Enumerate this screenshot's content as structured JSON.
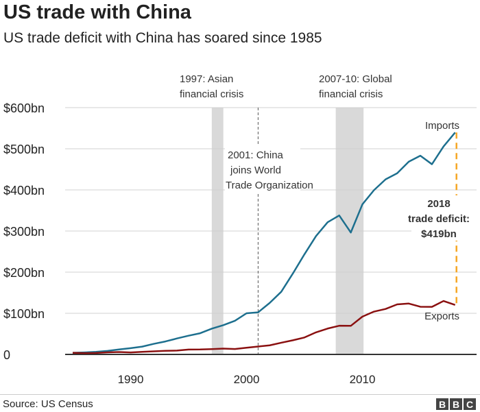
{
  "header": {
    "title": "US trade with China",
    "subtitle": "US trade deficit with China has soared since 1985"
  },
  "footer": {
    "source": "Source: US Census",
    "logo": "BBC"
  },
  "chart_data": {
    "type": "line",
    "title": "US trade with China",
    "subtitle": "US trade deficit with China has soared since 1985",
    "x": [
      1985,
      1986,
      1987,
      1988,
      1989,
      1990,
      1991,
      1992,
      1993,
      1994,
      1995,
      1996,
      1997,
      1998,
      1999,
      2000,
      2001,
      2002,
      2003,
      2004,
      2005,
      2006,
      2007,
      2008,
      2009,
      2010,
      2011,
      2012,
      2013,
      2014,
      2015,
      2016,
      2017,
      2018
    ],
    "series": [
      {
        "name": "Imports",
        "color": "#1d6f8e",
        "values": [
          3.9,
          4.8,
          6.3,
          8.5,
          12.0,
          15.2,
          19.0,
          25.7,
          31.5,
          38.8,
          45.5,
          51.5,
          62.6,
          71.2,
          81.8,
          100.0,
          102.3,
          125.2,
          152.4,
          196.7,
          243.5,
          287.8,
          321.4,
          337.8,
          296.4,
          364.9,
          399.4,
          425.6,
          440.4,
          468.5,
          483.2,
          462.4,
          505.5,
          539.5
        ]
      },
      {
        "name": "Exports",
        "color": "#8a1010",
        "values": [
          3.9,
          3.1,
          3.5,
          5.0,
          5.8,
          4.8,
          6.3,
          7.4,
          8.8,
          9.3,
          11.8,
          12.0,
          12.9,
          14.2,
          13.1,
          16.2,
          19.2,
          22.1,
          28.4,
          34.4,
          41.2,
          53.7,
          62.9,
          69.7,
          69.5,
          91.9,
          104.1,
          110.5,
          121.7,
          123.7,
          115.9,
          115.6,
          129.9,
          120.3
        ]
      }
    ],
    "xlim": [
      1984.5,
      2019.5
    ],
    "ylim": [
      0,
      600
    ],
    "x_ticks": [
      {
        "value": 1990,
        "label": "1990"
      },
      {
        "value": 2000,
        "label": "2000"
      },
      {
        "value": 2010,
        "label": "2010"
      }
    ],
    "y_ticks": [
      {
        "value": 0,
        "label": "0"
      },
      {
        "value": 100,
        "label": "$100bn"
      },
      {
        "value": 200,
        "label": "$200bn"
      },
      {
        "value": 300,
        "label": "$300bn"
      },
      {
        "value": 400,
        "label": "$400bn"
      },
      {
        "value": 500,
        "label": "$500bn"
      },
      {
        "value": 600,
        "label": "$600bn"
      }
    ],
    "grid": true,
    "shaded_periods": [
      {
        "start": 1997,
        "end": 1998,
        "label": [
          "1997: Asian",
          "financial crisis"
        ]
      },
      {
        "start": 2007.7,
        "end": 2010.1,
        "label": [
          "2007-10: Global",
          "financial crisis"
        ]
      }
    ],
    "event_line": {
      "x": 2001,
      "label": [
        "2001: China",
        "joins World",
        "Trade Organization"
      ]
    },
    "deficit_annotation": {
      "year": 2018,
      "lines": [
        "2018",
        "trade deficit:",
        "$419bn"
      ],
      "color": "#f5a623"
    }
  }
}
